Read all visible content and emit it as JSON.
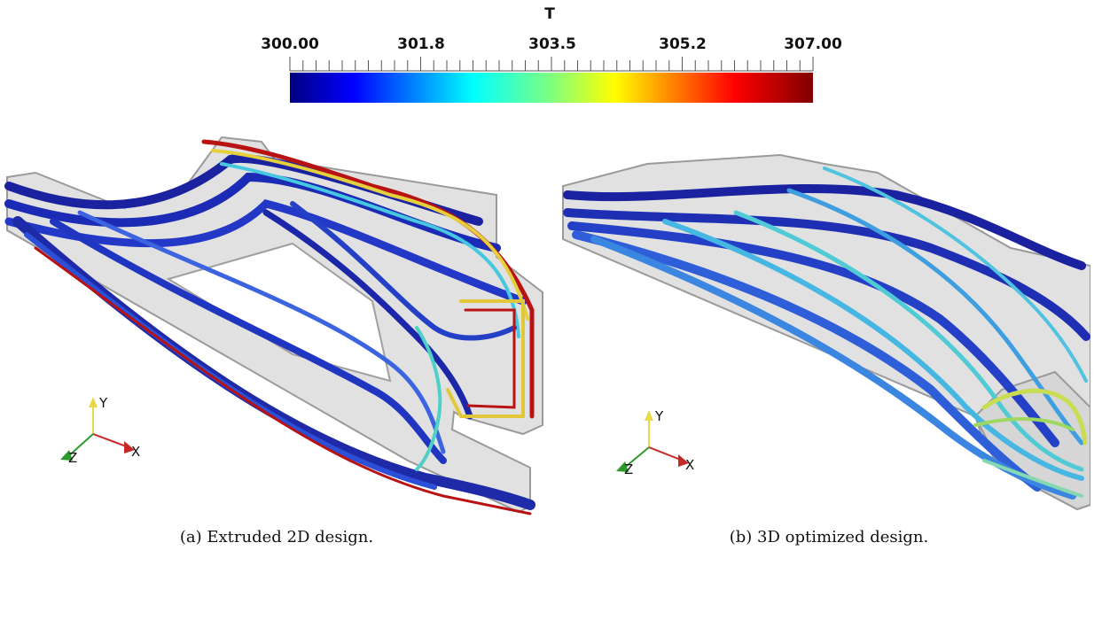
{
  "colorbar": {
    "title": "T",
    "tick_labels": [
      "300.00",
      "301.8",
      "303.5",
      "305.2",
      "307.00"
    ],
    "range": [
      300.0,
      307.0
    ],
    "colormap": "jet"
  },
  "panels": [
    {
      "caption": "(a) Extruded 2D design."
    },
    {
      "caption": "(b) 3D optimized design."
    }
  ],
  "axes_triad": {
    "x": "X",
    "y": "Y",
    "z": "Z"
  },
  "colors": {
    "cold": "#1c2ba8",
    "mid": "#3fc9e0",
    "warm": "#e8e040",
    "hot": "#b80d0d",
    "housing": "#bdbdbd"
  }
}
